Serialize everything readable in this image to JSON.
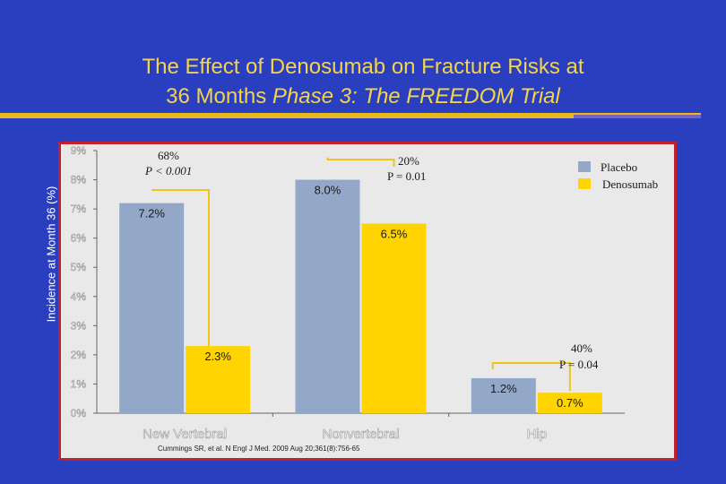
{
  "title": {
    "line1": "The Effect of Denosumab on Fracture Risks at",
    "line2_plain": "36 Months ",
    "line2_italic": "Phase 3: The FREEDOM Trial"
  },
  "citation": "Cummings SR, et al. N Engl J Med. 2009 Aug 20;361(8):756-65",
  "annotations": [
    {
      "pct": "68%",
      "p": "P < 0.001"
    },
    {
      "pct": "20%",
      "p": "P = 0.01"
    },
    {
      "pct": "40%",
      "p": "P = 0.04"
    }
  ],
  "colors": {
    "placebo": "#93a7c8",
    "denosumab": "#ffd400",
    "background": "#2a3fbf",
    "panel": "#e9e9e9",
    "border": "#c2202a",
    "accent": "#f5d34a"
  },
  "chart_data": {
    "type": "bar",
    "ylabel": "Incidence at Month 36 (%)",
    "xlabel": "",
    "ylim": [
      0,
      9
    ],
    "yticks": [
      "0%",
      "1%",
      "2%",
      "3%",
      "4%",
      "5%",
      "6%",
      "7%",
      "8%",
      "9%"
    ],
    "categories": [
      "New Vertebral",
      "Nonvertebral",
      "Hip"
    ],
    "series": [
      {
        "name": "Placebo",
        "values": [
          7.2,
          8.0,
          1.2
        ],
        "labels": [
          "7.2%",
          "8.0%",
          "1.2%"
        ]
      },
      {
        "name": "Denosumab",
        "values": [
          2.3,
          6.5,
          0.7
        ],
        "labels": [
          "2.3%",
          "6.5%",
          "0.7%"
        ]
      }
    ],
    "legend_position": "top-right",
    "grid": false
  }
}
